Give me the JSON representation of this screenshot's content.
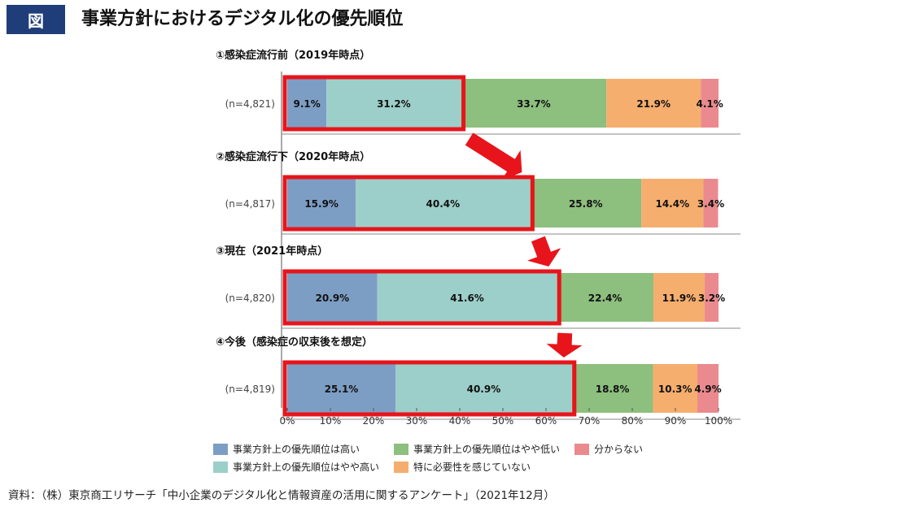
{
  "header": {
    "badge": "図",
    "title": "事業方針におけるデジタル化の優先順位"
  },
  "source": "資料：（株）東京商工リサーチ「中小企業のデジタル化と情報資産の活用に関するアンケート」（2021年12月）",
  "chart_data": {
    "type": "bar",
    "orientation": "horizontal",
    "stacked": true,
    "xlim": [
      0,
      100
    ],
    "x_ticks": [
      "0%",
      "10%",
      "20%",
      "30%",
      "40%",
      "50%",
      "60%",
      "70%",
      "80%",
      "90%",
      "100%"
    ],
    "legend_placement": "bottom",
    "grid": false,
    "series": [
      {
        "name": "事業方針上の優先順位は高い",
        "color": "#7d9ec4"
      },
      {
        "name": "事業方針上の優先順位はやや高い",
        "color": "#9ccfc9"
      },
      {
        "name": "事業方針上の優先順位はやや低い",
        "color": "#8dbf7e"
      },
      {
        "name": "特に必要性を感じていない",
        "color": "#f5ae6e"
      },
      {
        "name": "分からない",
        "color": "#eb8a8e"
      }
    ],
    "groups": [
      {
        "title": "①感染症流行前（2019年時点）",
        "n_label": "(n=4,821)",
        "values": [
          9.1,
          31.2,
          33.7,
          21.9,
          4.1
        ],
        "labels": [
          "9.1%",
          "31.2%",
          "33.7%",
          "21.9%",
          "4.1%"
        ]
      },
      {
        "title": "②感染症流行下（2020年時点）",
        "n_label": "(n=4,817)",
        "values": [
          15.9,
          40.4,
          25.8,
          14.4,
          3.4
        ],
        "labels": [
          "15.9%",
          "40.4%",
          "25.8%",
          "14.4%",
          "3.4%"
        ]
      },
      {
        "title": "③現在（2021年時点）",
        "n_label": "(n=4,820)",
        "values": [
          20.9,
          41.6,
          22.4,
          11.9,
          3.2
        ],
        "labels": [
          "20.9%",
          "41.6%",
          "22.4%",
          "11.9%",
          "3.2%"
        ]
      },
      {
        "title": "④今後（感染症の収束後を想定）",
        "n_label": "(n=4,819)",
        "values": [
          25.1,
          40.9,
          18.8,
          10.3,
          4.9
        ],
        "labels": [
          "25.1%",
          "40.9%",
          "18.8%",
          "10.3%",
          "4.9%"
        ]
      }
    ],
    "highlight": {
      "series_indices": [
        0,
        1
      ],
      "color": "#e8141b"
    }
  }
}
